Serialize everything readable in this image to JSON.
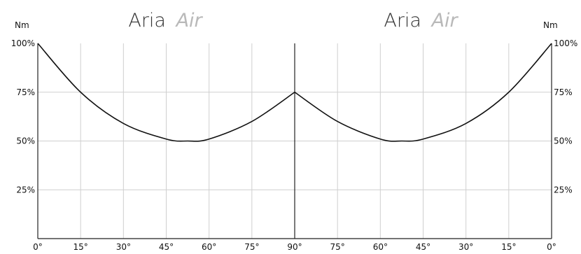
{
  "titles": [
    {
      "main": "Aria",
      "accent": "Air"
    },
    {
      "main": "Aria",
      "accent": "Air"
    }
  ],
  "unit_left": "Nm",
  "unit_right": "Nm",
  "colors": {
    "curve": "#111111",
    "grid": "#cfcfcf",
    "accent_text": "#b9b9b9"
  },
  "chart_data": {
    "type": "line",
    "title": "Aria Air",
    "ylabel": "Nm",
    "xlabel": "",
    "ylim": [
      0,
      100
    ],
    "y_ticks": [
      "25%",
      "50%",
      "75%",
      "100%"
    ],
    "y_tick_values": [
      25,
      50,
      75,
      100
    ],
    "x_ticks": [
      "0°",
      "15°",
      "30°",
      "45°",
      "60°",
      "75°",
      "90°",
      "75°",
      "60°",
      "45°",
      "30°",
      "15°",
      "0°"
    ],
    "x_tick_values": [
      0,
      15,
      30,
      45,
      60,
      75,
      90,
      75,
      60,
      45,
      30,
      15,
      0
    ],
    "grid": true,
    "series": [
      {
        "x_index": [
          0,
          1,
          2,
          3,
          3.5,
          4,
          5,
          6
        ],
        "values": [
          100,
          75,
          59,
          51,
          50,
          51,
          60,
          75
        ]
      },
      {
        "x_index": [
          6,
          7,
          8,
          8.5,
          9,
          10,
          11,
          12
        ],
        "values": [
          75,
          60,
          51,
          50,
          51,
          59,
          75,
          100
        ]
      }
    ]
  }
}
